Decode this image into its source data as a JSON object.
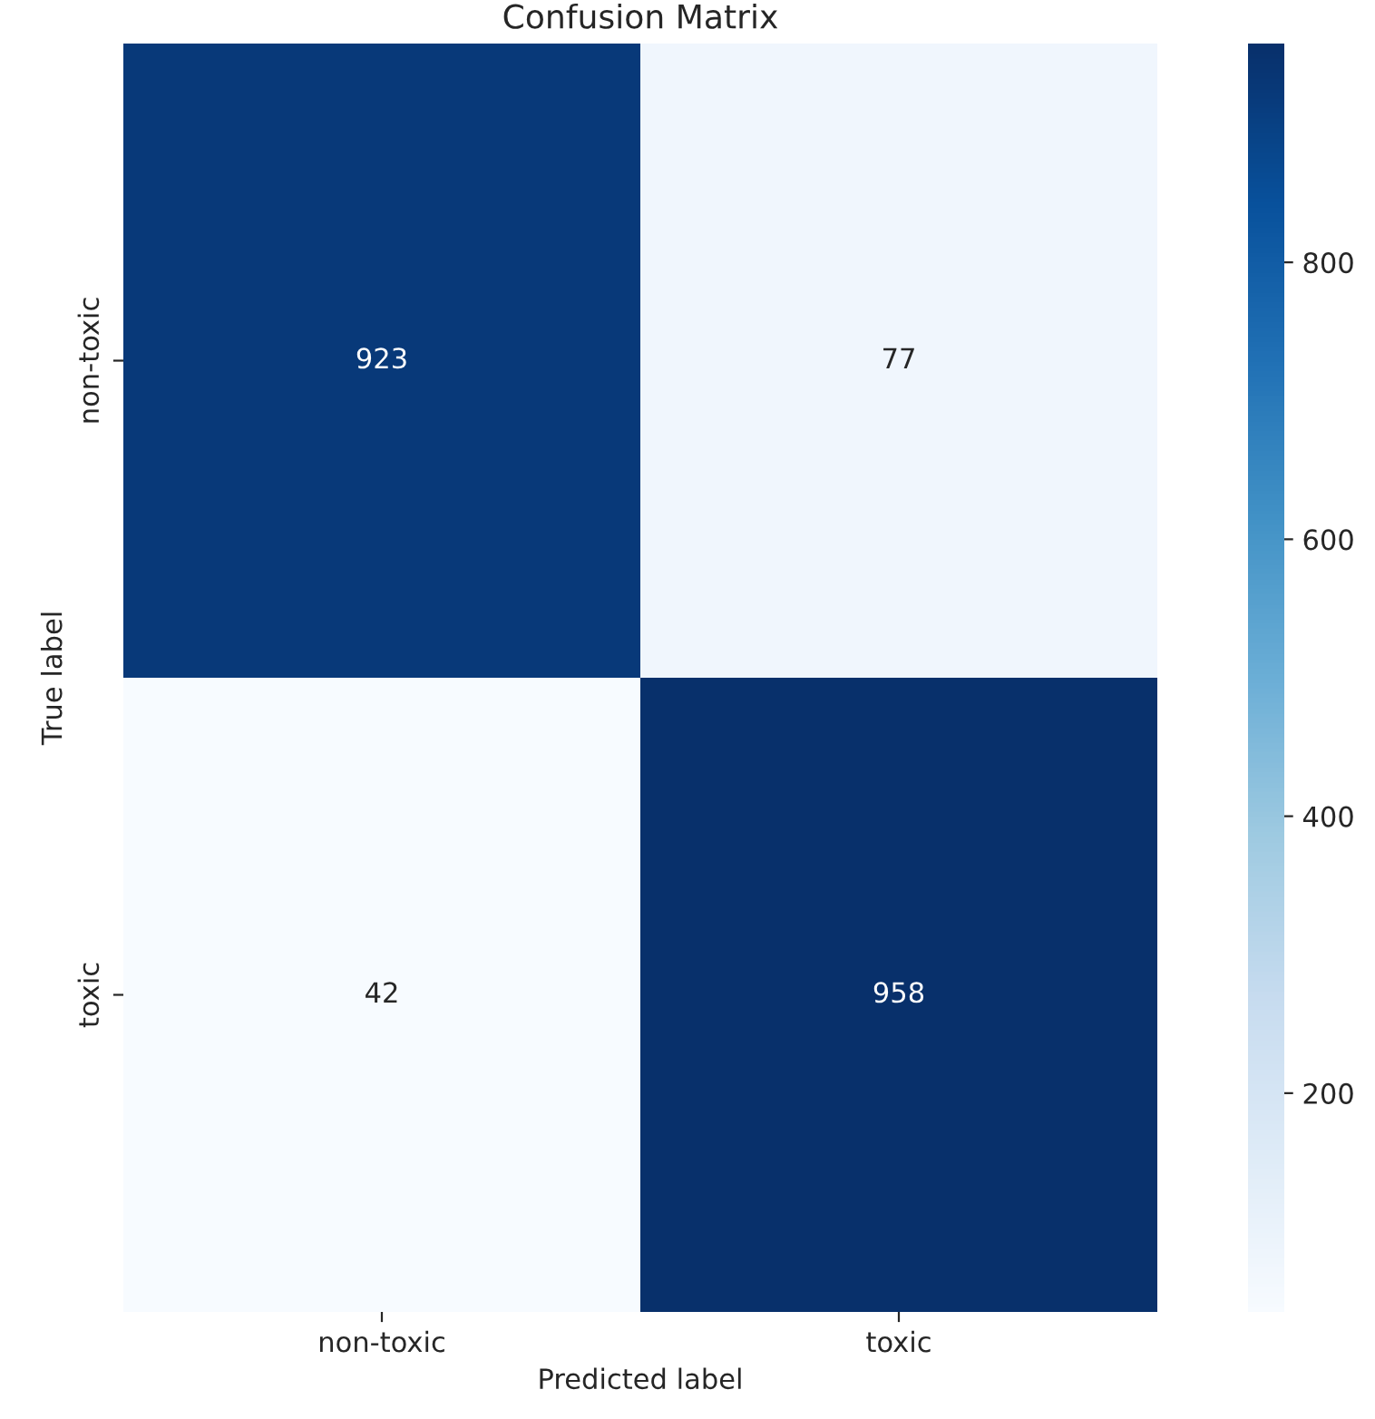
{
  "chart_data": {
    "type": "heatmap",
    "title": "Confusion Matrix",
    "xlabel": "Predicted label",
    "ylabel": "True label",
    "categories": [
      "non-toxic",
      "toxic"
    ],
    "y_categories": [
      "non-toxic",
      "toxic"
    ],
    "cells": [
      [
        923,
        77
      ],
      [
        42,
        958
      ]
    ],
    "clim": [
      42,
      958
    ],
    "cticks": [
      200,
      400,
      600,
      800
    ],
    "data_labels": true
  }
}
